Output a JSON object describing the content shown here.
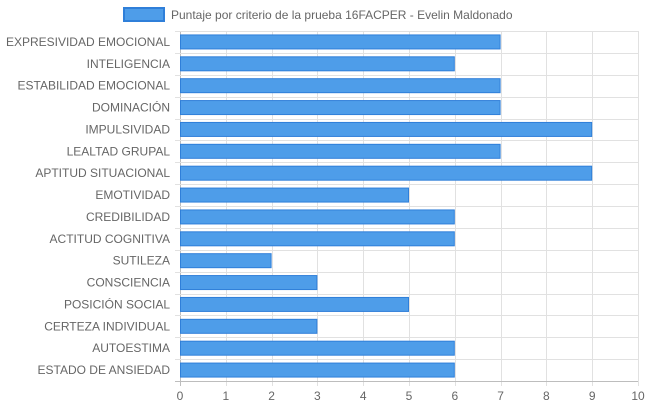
{
  "chart_data": {
    "type": "bar",
    "orientation": "horizontal",
    "legend_position": "top",
    "grid": true,
    "xlim": [
      0,
      10
    ],
    "x_ticks": [
      "0",
      "1",
      "2",
      "3",
      "4",
      "5",
      "6",
      "7",
      "8",
      "9",
      "10"
    ],
    "categories": [
      "EXPRESIVIDAD EMOCIONAL",
      "INTELIGENCIA",
      "ESTABILIDAD EMOCIONAL",
      "DOMINACIÓN",
      "IMPULSIVIDAD",
      "LEALTAD GRUPAL",
      "APTITUD SITUACIONAL",
      "EMOTIVIDAD",
      "CREDIBILIDAD",
      "ACTITUD COGNITIVA",
      "SUTILEZA",
      "CONSCIENCIA",
      "POSICIÓN SOCIAL",
      "CERTEZA INDIVIDUAL",
      "AUTOESTIMA",
      "ESTADO DE ANSIEDAD"
    ],
    "series": [
      {
        "name": "Puntaje por criterio de la prueba 16FACPER - Evelin Maldonado",
        "values": [
          7,
          6,
          7,
          7,
          9,
          7,
          9,
          5,
          6,
          6,
          2,
          3,
          5,
          3,
          6,
          6
        ],
        "fill_color": "#4e9de9",
        "border_color": "#2f7fd9"
      }
    ]
  }
}
